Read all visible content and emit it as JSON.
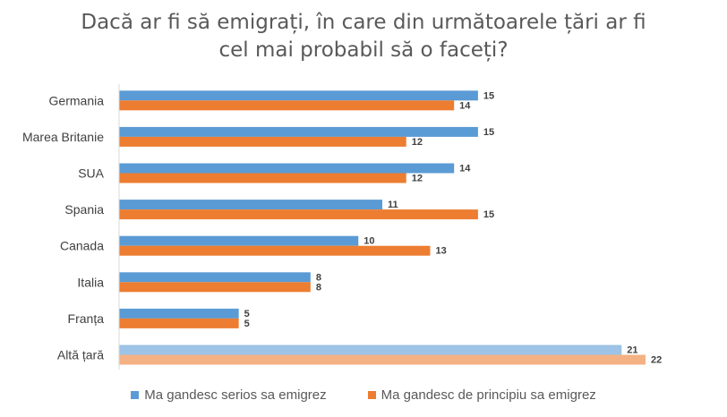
{
  "chart_data": {
    "type": "bar",
    "orientation": "horizontal",
    "title_line1": "Dacă ar fi să emigrați, în care din următoarele țări ar fi",
    "title_line2": "cel mai probabil să o faceți?",
    "categories": [
      "Germania",
      "Marea Britanie",
      "SUA",
      "Spania",
      "Canada",
      "Italia",
      "Franța",
      "Altă țară"
    ],
    "series": [
      {
        "name": "Ma gandesc serios sa emigrez",
        "values": [
          15,
          15,
          14,
          11,
          10,
          8,
          5,
          21
        ],
        "color": "#5B9BD5"
      },
      {
        "name": "Ma gandesc de principiu sa emigrez",
        "values": [
          14,
          12,
          12,
          15,
          13,
          8,
          5,
          22
        ],
        "color": "#ED7D31"
      }
    ],
    "highlight_category": "Altă țară",
    "highlight_colors": [
      "#9DC3E6",
      "#F4B183"
    ],
    "xlim": [
      0,
      22
    ],
    "grid": false,
    "legend_position": "bottom"
  }
}
